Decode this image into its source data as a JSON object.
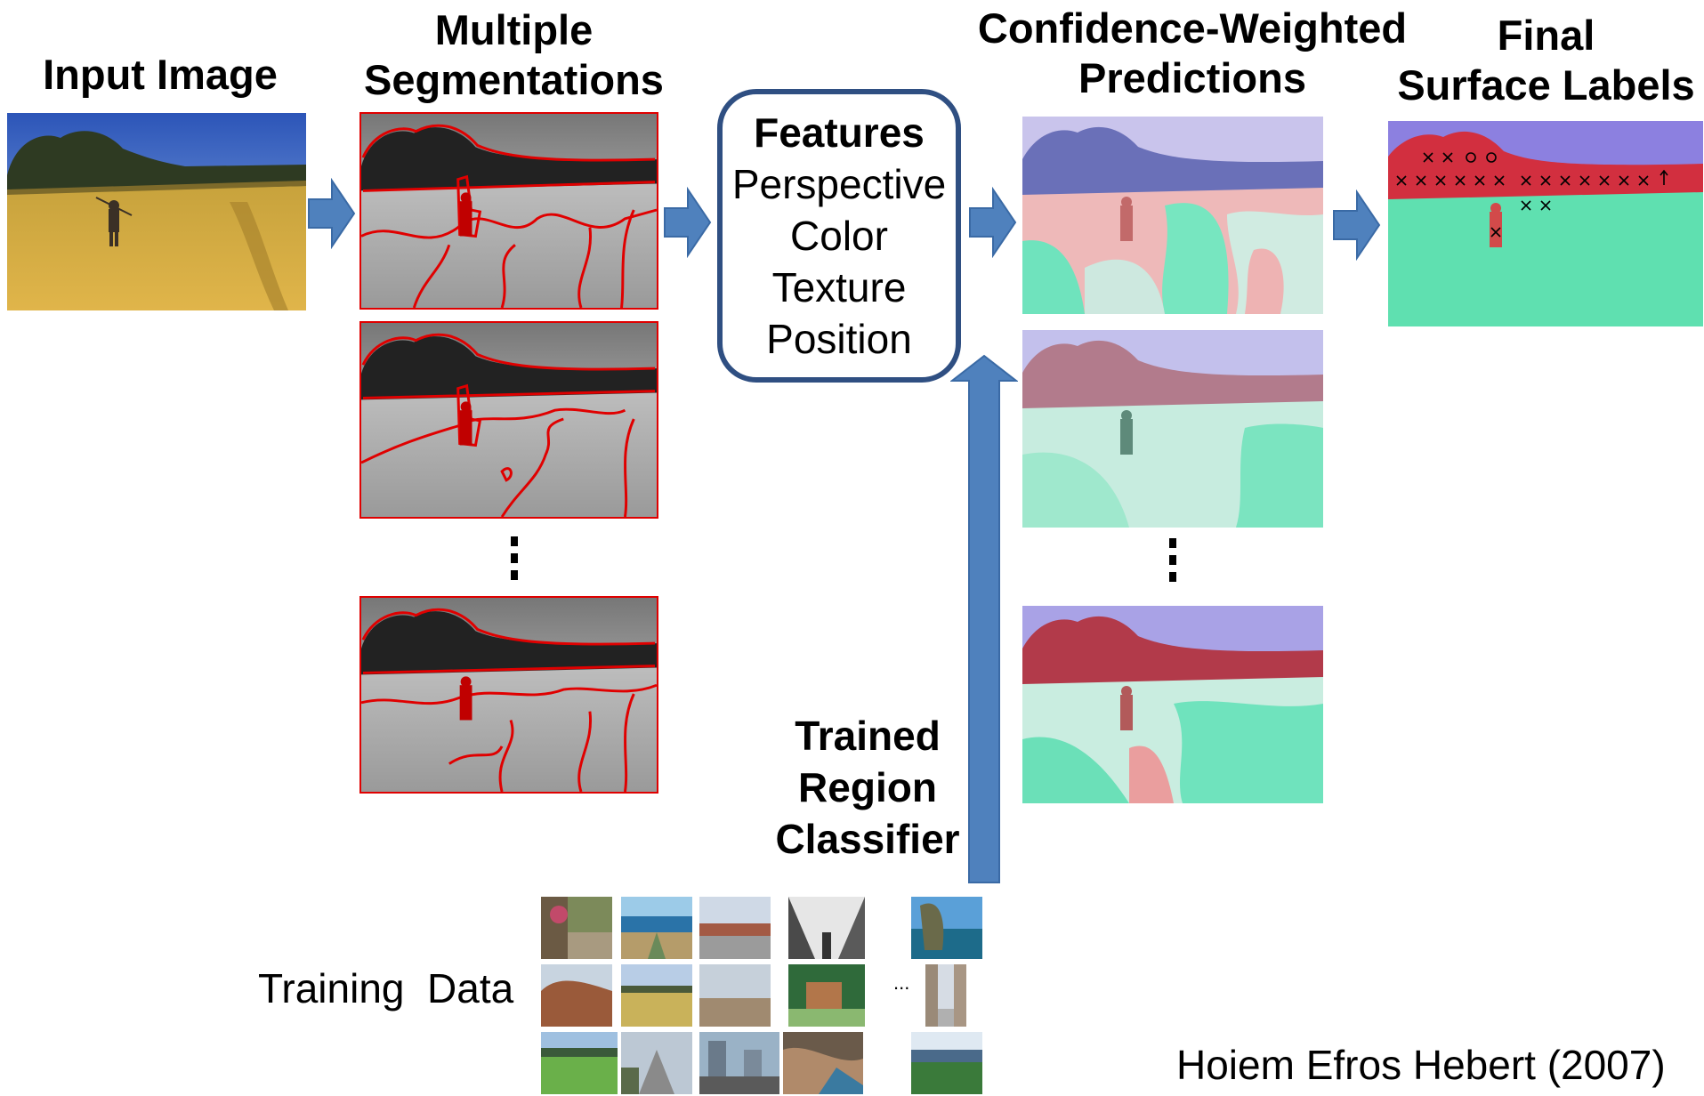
{
  "headings": {
    "input_image": "Input Image",
    "multiple_segmentations": [
      "Multiple",
      "Segmentations"
    ],
    "confidence_weighted": [
      "Confidence-Weighted",
      "Predictions"
    ],
    "final_labels": [
      "Final",
      "Surface Labels"
    ]
  },
  "features_box": {
    "title": "Features",
    "items": [
      "Perspective",
      "Color",
      "Texture",
      "Position"
    ]
  },
  "classifier_label": [
    "Trained",
    "Region",
    "Classifier"
  ],
  "training_data_label": "Training  Data",
  "training_ellipsis": "...",
  "citation": "Hoiem Efros Hebert (2007)",
  "colors": {
    "arrow_fill": "#4f81bd",
    "arrow_stroke": "#3a6aa5",
    "box_border": "#2f4f82",
    "segment_outline": "#e00000",
    "label_sky": "#8c80e0",
    "label_vertical": "#e87878",
    "label_ground": "#5fe0b0"
  },
  "icons": [
    "right-arrow-icon",
    "up-arrow-icon",
    "vertical-ellipsis-icon"
  ]
}
